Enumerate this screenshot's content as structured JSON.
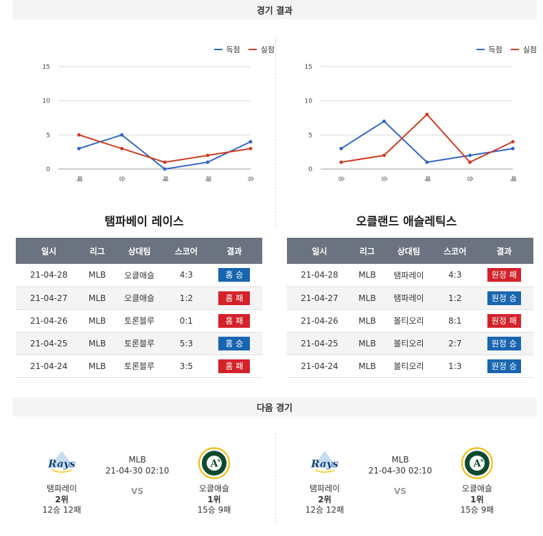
{
  "results_section": {
    "title": "경기 결과"
  },
  "next_section": {
    "title": "다음 경기"
  },
  "charts": [
    {
      "legend": [
        {
          "label": "득점",
          "color": "#2e64c8"
        },
        {
          "label": "실점",
          "color": "#d03a1e"
        }
      ],
      "chart_data": {
        "type": "line",
        "categories": [
          "패",
          "승",
          "패",
          "패",
          "승"
        ],
        "series": [
          {
            "name": "득점",
            "values": [
              3,
              5,
              0,
              1,
              4
            ]
          },
          {
            "name": "실점",
            "values": [
              5,
              3,
              1,
              2,
              3
            ]
          }
        ],
        "ylim": [
          0,
          15
        ],
        "yticks": [
          "0",
          "5",
          "10",
          "15"
        ],
        "legend_position": "top-right",
        "grid": true
      }
    },
    {
      "legend": [
        {
          "label": "득점",
          "color": "#2e64c8"
        },
        {
          "label": "실점",
          "color": "#d03a1e"
        }
      ],
      "chart_data": {
        "type": "line",
        "categories": [
          "승",
          "승",
          "패",
          "승",
          "패"
        ],
        "series": [
          {
            "name": "득점",
            "values": [
              3,
              7,
              1,
              2,
              3
            ]
          },
          {
            "name": "실점",
            "values": [
              1,
              2,
              8,
              1,
              4
            ]
          }
        ],
        "ylim": [
          0,
          15
        ],
        "yticks": [
          "0",
          "5",
          "10",
          "15"
        ],
        "legend_position": "top-right",
        "grid": true
      }
    }
  ],
  "teams": [
    {
      "title": "탬파베이 레이스",
      "headers": [
        "일시",
        "리그",
        "상대팀",
        "스코어",
        "결과"
      ],
      "rows": [
        {
          "date": "21-04-28",
          "league": "MLB",
          "opponent": "오클애슬",
          "score": "4:3",
          "result": "홈 승",
          "win": true
        },
        {
          "date": "21-04-27",
          "league": "MLB",
          "opponent": "오클애슬",
          "score": "1:2",
          "result": "홈 패",
          "win": false
        },
        {
          "date": "21-04-26",
          "league": "MLB",
          "opponent": "토론블루",
          "score": "0:1",
          "result": "홈 패",
          "win": false
        },
        {
          "date": "21-04-25",
          "league": "MLB",
          "opponent": "토론블루",
          "score": "5:3",
          "result": "홈 승",
          "win": true
        },
        {
          "date": "21-04-24",
          "league": "MLB",
          "opponent": "토론블루",
          "score": "3:5",
          "result": "홈 패",
          "win": false
        }
      ]
    },
    {
      "title": "오클랜드 애슬레틱스",
      "headers": [
        "일시",
        "리그",
        "상대팀",
        "스코어",
        "결과"
      ],
      "rows": [
        {
          "date": "21-04-28",
          "league": "MLB",
          "opponent": "탬파레이",
          "score": "4:3",
          "result": "원정 패",
          "win": false
        },
        {
          "date": "21-04-27",
          "league": "MLB",
          "opponent": "탬파레이",
          "score": "1:2",
          "result": "원정 승",
          "win": true
        },
        {
          "date": "21-04-26",
          "league": "MLB",
          "opponent": "볼티오리",
          "score": "8:1",
          "result": "원정 패",
          "win": false
        },
        {
          "date": "21-04-25",
          "league": "MLB",
          "opponent": "볼티오리",
          "score": "2:7",
          "result": "원정 승",
          "win": true
        },
        {
          "date": "21-04-24",
          "league": "MLB",
          "opponent": "볼티오리",
          "score": "1:3",
          "result": "원정 승",
          "win": true
        }
      ]
    }
  ],
  "next_matches": [
    {
      "home": {
        "name": "탬파레이",
        "rank": "2위",
        "record": "12승 12패",
        "logo": "rays-logo"
      },
      "league": "MLB",
      "datetime": "21-04-30 02:10",
      "vs": "VS",
      "away": {
        "name": "오클애슬",
        "rank": "1위",
        "record": "15승 9패",
        "logo": "athletics-logo"
      }
    },
    {
      "home": {
        "name": "탬파레이",
        "rank": "2위",
        "record": "12승 12패",
        "logo": "rays-logo"
      },
      "league": "MLB",
      "datetime": "21-04-30 02:10",
      "vs": "VS",
      "away": {
        "name": "오클애슬",
        "rank": "1위",
        "record": "15승 9패",
        "logo": "athletics-logo"
      }
    }
  ]
}
